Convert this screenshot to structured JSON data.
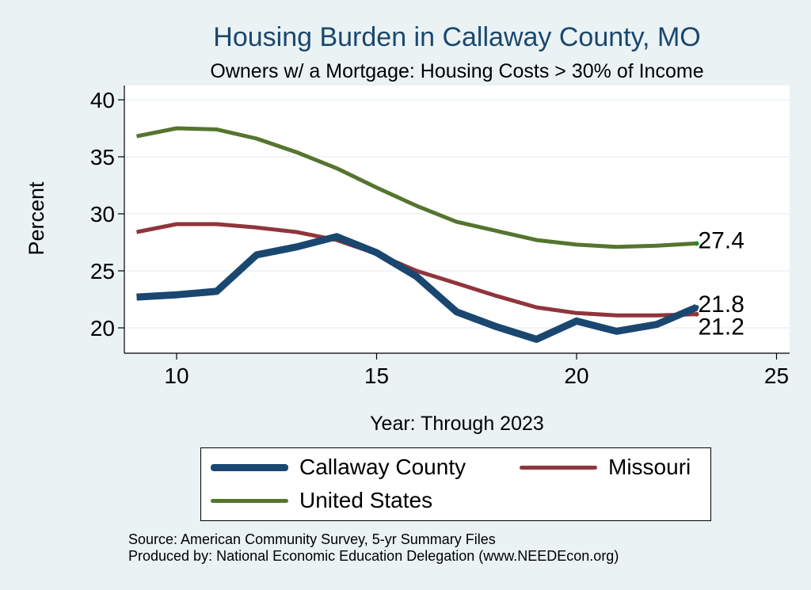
{
  "chart_data": {
    "type": "line",
    "title": "Housing Burden in Callaway County, MO",
    "subtitle": "Owners w/ a Mortgage: Housing Costs > 30% of Income",
    "xlabel": "Year: Through 2023",
    "ylabel": "Percent",
    "xlim": [
      9,
      25
    ],
    "ylim": [
      18,
      41
    ],
    "xticks": [
      10,
      15,
      20,
      25
    ],
    "yticks": [
      20,
      25,
      30,
      35,
      40
    ],
    "grid": true,
    "x": [
      9,
      10,
      11,
      12,
      13,
      14,
      15,
      16,
      17,
      18,
      19,
      20,
      21,
      22,
      23
    ],
    "series": [
      {
        "name": "Callaway County",
        "color": "#1a476f",
        "width": 9,
        "values": [
          22.7,
          22.9,
          23.2,
          26.4,
          27.1,
          28.0,
          26.6,
          24.5,
          21.4,
          20.1,
          19.0,
          20.6,
          19.7,
          20.3,
          21.8
        ],
        "end_label": "21.8"
      },
      {
        "name": "Missouri",
        "color": "#90353b",
        "width": 5,
        "values": [
          28.4,
          29.1,
          29.1,
          28.8,
          28.4,
          27.7,
          26.5,
          25.0,
          23.9,
          22.8,
          21.8,
          21.3,
          21.1,
          21.1,
          21.2
        ],
        "end_label": "21.2"
      },
      {
        "name": "United States",
        "color": "#55752f",
        "width": 5,
        "values": [
          36.8,
          37.5,
          37.4,
          36.6,
          35.4,
          34.0,
          32.3,
          30.7,
          29.3,
          28.5,
          27.7,
          27.3,
          27.1,
          27.2,
          27.4
        ],
        "end_label": "27.4"
      }
    ],
    "legend_position": "bottom"
  },
  "footer": {
    "source": "Source: American Community Survey, 5-yr Summary Files",
    "produced_by": "Produced by: National Economic Education Delegation (www.NEEDEcon.org)"
  }
}
